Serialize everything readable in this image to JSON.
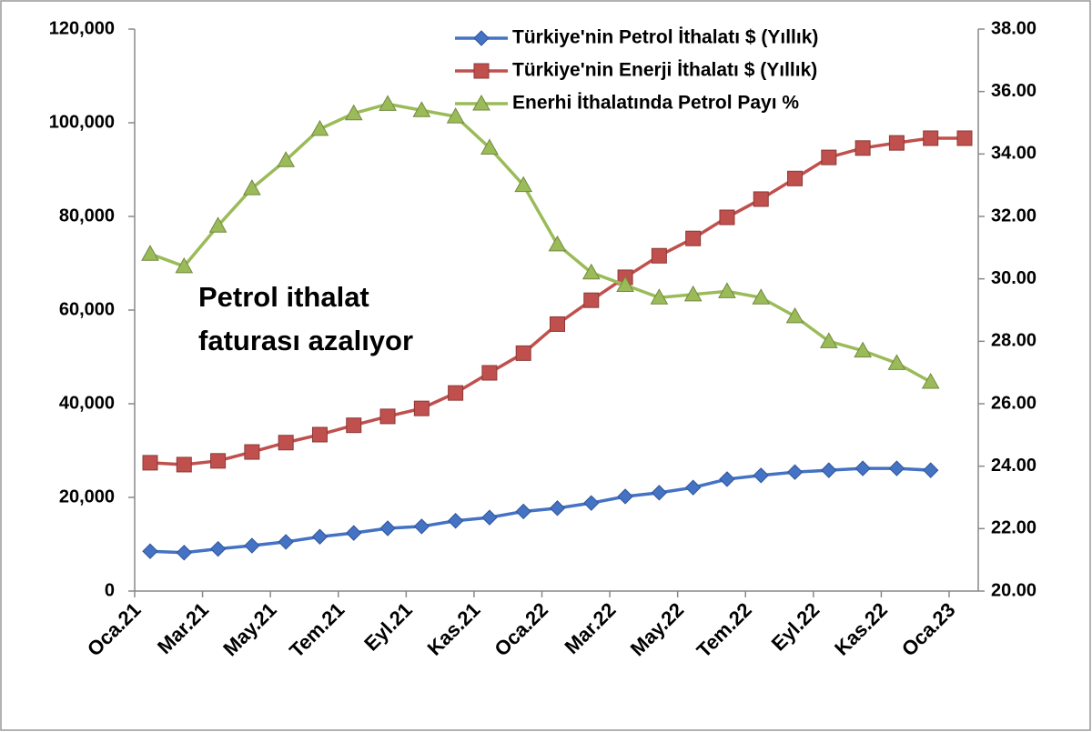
{
  "chart_data": {
    "type": "line",
    "categories": [
      "Oca.21",
      null,
      "Mar.21",
      null,
      "May.21",
      null,
      "Tem.21",
      null,
      "Eyl.21",
      null,
      "Kas.21",
      null,
      "Oca.22",
      null,
      "Mar.22",
      null,
      "May.22",
      null,
      "Tem.22",
      null,
      "Eyl.22",
      null,
      "Kas.22",
      null,
      "Oca.23"
    ],
    "series": [
      {
        "name": "Türkiye'nin Petrol İthalatı $ (Yıllık)",
        "color": "#4472c4",
        "marker": "diamond",
        "values": [
          8500,
          8200,
          9000,
          9700,
          10500,
          11600,
          12400,
          13400,
          13800,
          15000,
          15700,
          17000,
          17700,
          18800,
          20200,
          21000,
          22100,
          23900,
          24700,
          25400,
          25800,
          26200,
          26200,
          25800,
          null
        ]
      },
      {
        "name": "Türkiye'nin Enerji İthalatı $ (Yıllık)",
        "color": "#c0504d",
        "marker": "square",
        "values": [
          27400,
          27000,
          27800,
          29700,
          31700,
          33400,
          35400,
          37300,
          39000,
          42300,
          46600,
          50800,
          57000,
          62100,
          67000,
          71600,
          75300,
          79800,
          83700,
          88100,
          92600,
          94600,
          95700,
          96700,
          96700
        ]
      },
      {
        "name": "Enerhi İthalatında Petrol Payı %",
        "color": "#9bbb59",
        "marker": "triangle",
        "axis": "y2",
        "values": [
          30.8,
          30.4,
          31.7,
          32.9,
          33.8,
          34.8,
          35.3,
          35.6,
          35.4,
          35.2,
          34.2,
          33.0,
          31.1,
          30.2,
          29.8,
          29.4,
          29.5,
          29.6,
          29.4,
          28.8,
          28.0,
          27.7,
          27.3,
          26.7,
          null
        ]
      }
    ],
    "ylim": [
      0,
      120000
    ],
    "yticks": [
      {
        "value": 0,
        "label": "0"
      },
      {
        "value": 20000,
        "label": "20,000"
      },
      {
        "value": 40000,
        "label": "40,000"
      },
      {
        "value": 60000,
        "label": "60,000"
      },
      {
        "value": 80000,
        "label": "80,000"
      },
      {
        "value": 100000,
        "label": "100,000"
      },
      {
        "value": 120000,
        "label": "120,000"
      }
    ],
    "y2lim": [
      20,
      38
    ],
    "y2ticks": [
      {
        "value": 20,
        "label": "20.00"
      },
      {
        "value": 22,
        "label": "22.00"
      },
      {
        "value": 24,
        "label": "24.00"
      },
      {
        "value": 26,
        "label": "26.00"
      },
      {
        "value": 28,
        "label": "28.00"
      },
      {
        "value": 30,
        "label": "30.00"
      },
      {
        "value": 32,
        "label": "32.00"
      },
      {
        "value": 34,
        "label": "34.00"
      },
      {
        "value": 36,
        "label": "36.00"
      },
      {
        "value": 38,
        "label": "38.00"
      }
    ],
    "annotation": [
      "Petrol ithalat",
      "faturası azalıyor"
    ],
    "legend": "top-right"
  }
}
